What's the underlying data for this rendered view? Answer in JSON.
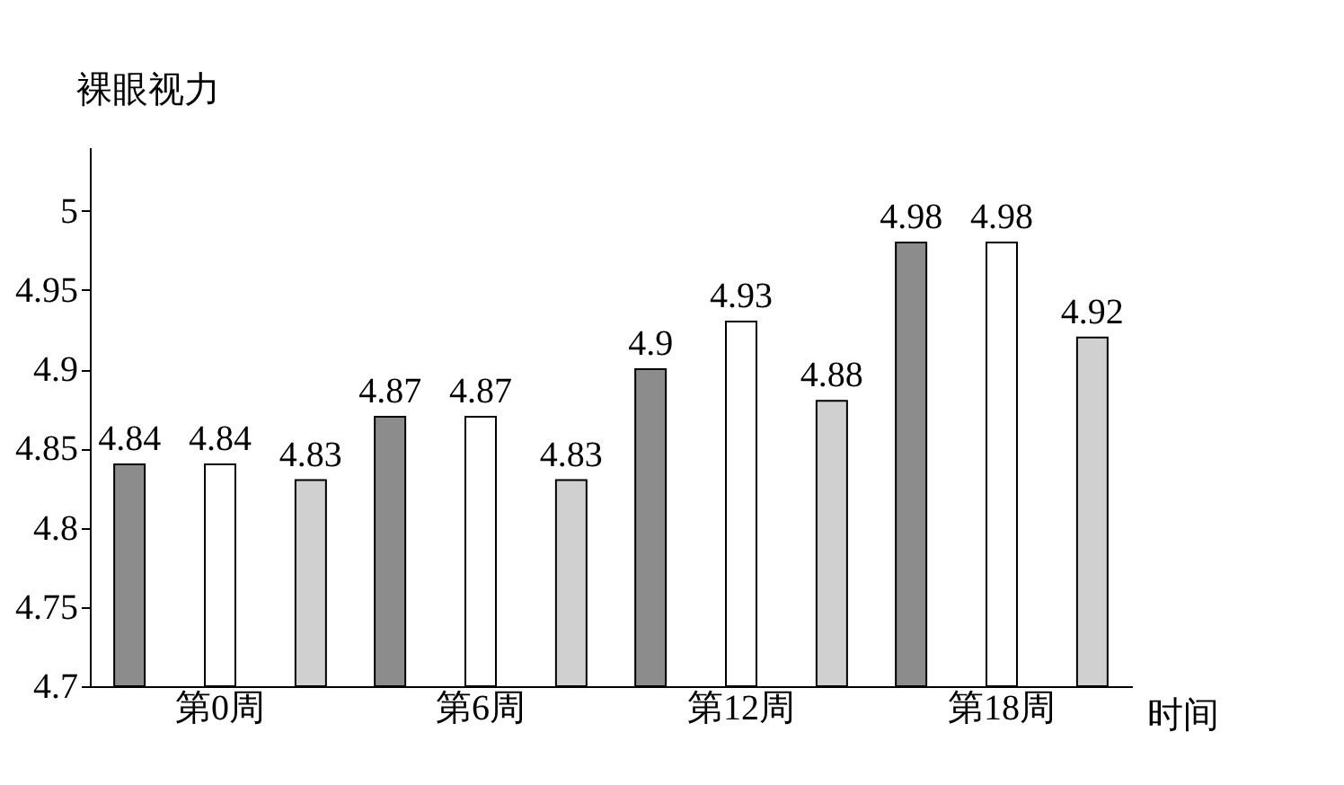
{
  "chart_data": {
    "type": "bar",
    "ylabel": "裸眼视力",
    "xlabel": "时间",
    "categories": [
      "第0周",
      "第6周",
      "第12周",
      "第18周"
    ],
    "series": [
      {
        "color": "#8c8c8c",
        "values": [
          4.84,
          4.87,
          4.9,
          4.98
        ]
      },
      {
        "color": "#ffffff",
        "values": [
          4.84,
          4.87,
          4.93,
          4.98
        ]
      },
      {
        "color": "#d0d0d0",
        "values": [
          4.83,
          4.83,
          4.88,
          4.92
        ]
      }
    ],
    "ylim": [
      4.7,
      5.04
    ],
    "yticks": [
      4.7,
      4.75,
      4.8,
      4.85,
      4.9,
      4.95,
      5
    ],
    "data_labels": true,
    "grid": false,
    "legend": false
  }
}
